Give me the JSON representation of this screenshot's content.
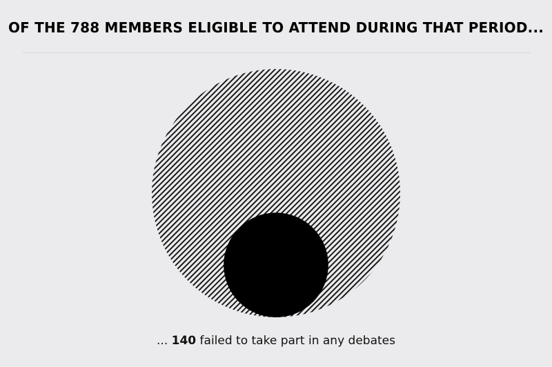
{
  "title": "OF THE 788 MEMBERS ELIGIBLE TO ATTEND DURING THAT PERIOD...",
  "caption": {
    "prefix": "...",
    "number": "140",
    "suffix": "failed to take part in any debates"
  },
  "chart_data": {
    "type": "area",
    "categories": [
      "eligible members",
      "failed to take part in any debates"
    ],
    "values": [
      788,
      140
    ],
    "total": 788,
    "subset": 140,
    "colors": {
      "total_hatch": "#1a1a1a",
      "subset_fill": "#000000",
      "background": "#ebebed"
    }
  }
}
